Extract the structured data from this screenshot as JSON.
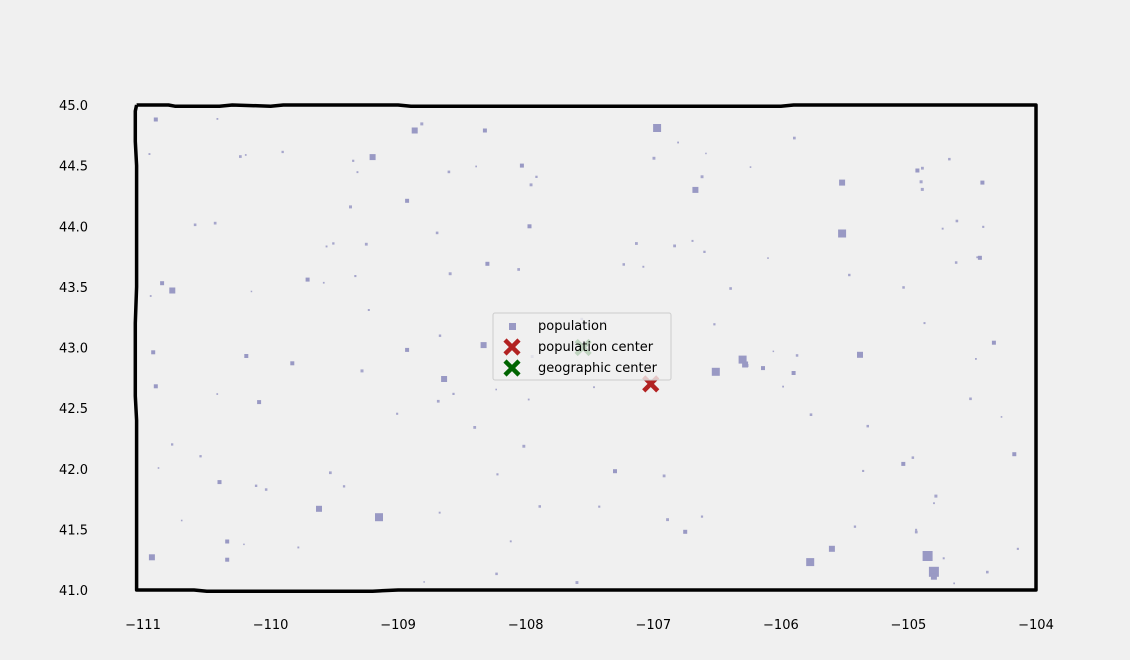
{
  "chart_data": {
    "type": "scatter",
    "xlim": [
      -111.05,
      -104.0
    ],
    "ylim": [
      40.98,
      45.05
    ],
    "x_ticks": [
      -111,
      -110,
      -109,
      -108,
      -107,
      -106,
      -105,
      -104
    ],
    "y_ticks": [
      41.0,
      41.5,
      42.0,
      42.5,
      43.0,
      43.5,
      44.0,
      44.5,
      45.0
    ],
    "x_tick_labels": [
      "−111",
      "−110",
      "−109",
      "−108",
      "−107",
      "−106",
      "−105",
      "−104"
    ],
    "y_tick_labels": [
      "41.0",
      "41.5",
      "42.0",
      "42.5",
      "43.0",
      "43.5",
      "44.0",
      "44.5",
      "45.0"
    ],
    "grid": false,
    "legend_position": "center",
    "boundary": {
      "color": "#000000",
      "lonlat": [
        [
          -111.05,
          45.0
        ],
        [
          -110.8,
          45.0
        ],
        [
          -110.75,
          44.99
        ],
        [
          -110.4,
          44.99
        ],
        [
          -110.3,
          45.0
        ],
        [
          -110.0,
          44.99
        ],
        [
          -109.9,
          45.0
        ],
        [
          -109.0,
          45.0
        ],
        [
          -108.9,
          44.99
        ],
        [
          -106.0,
          44.99
        ],
        [
          -105.9,
          45.0
        ],
        [
          -104.0,
          45.0
        ],
        [
          -104.0,
          44.0
        ],
        [
          -104.0,
          41.0
        ],
        [
          -106.0,
          41.0
        ],
        [
          -107.9,
          41.0
        ],
        [
          -108.2,
          41.0
        ],
        [
          -109.0,
          41.0
        ],
        [
          -109.2,
          40.99
        ],
        [
          -110.5,
          40.99
        ],
        [
          -110.6,
          41.0
        ],
        [
          -111.05,
          41.0
        ],
        [
          -111.05,
          42.0
        ],
        [
          -111.05,
          42.4
        ],
        [
          -111.06,
          42.6
        ],
        [
          -111.06,
          43.2
        ],
        [
          -111.05,
          43.5
        ],
        [
          -111.05,
          44.0
        ],
        [
          -111.05,
          44.5
        ],
        [
          -111.06,
          44.7
        ],
        [
          -111.06,
          44.95
        ],
        [
          -111.05,
          45.0
        ]
      ]
    },
    "series": [
      {
        "name": "population",
        "marker": "square",
        "color": "#9999c4",
        "points": [
          [
            -110.9,
            44.88,
            1
          ],
          [
            -108.87,
            44.79,
            2
          ],
          [
            -108.32,
            44.79,
            1
          ],
          [
            -106.97,
            44.81,
            3
          ],
          [
            -109.2,
            44.57,
            2
          ],
          [
            -106.67,
            44.3,
            2
          ],
          [
            -105.52,
            44.36,
            2
          ],
          [
            -105.52,
            43.94,
            3
          ],
          [
            -104.44,
            43.74,
            1
          ],
          [
            -107.97,
            44.0,
            1
          ],
          [
            -110.77,
            43.47,
            2
          ],
          [
            -110.85,
            43.53,
            1
          ],
          [
            -108.33,
            43.02,
            2
          ],
          [
            -108.64,
            42.74,
            2
          ],
          [
            -109.83,
            42.87,
            1
          ],
          [
            -110.19,
            42.93,
            1
          ],
          [
            -110.92,
            42.96,
            1
          ],
          [
            -110.9,
            42.68,
            1
          ],
          [
            -106.28,
            42.86,
            2
          ],
          [
            -106.3,
            42.9,
            3
          ],
          [
            -106.51,
            42.8,
            3
          ],
          [
            -105.38,
            42.94,
            2
          ],
          [
            -105.9,
            42.79,
            1
          ],
          [
            -106.14,
            42.83,
            1
          ],
          [
            -107.3,
            41.98,
            1
          ],
          [
            -105.04,
            42.04,
            1
          ],
          [
            -104.17,
            42.12,
            1
          ],
          [
            -109.62,
            41.67,
            2
          ],
          [
            -109.15,
            41.6,
            3
          ],
          [
            -110.34,
            41.4,
            1
          ],
          [
            -110.93,
            41.27,
            2
          ],
          [
            -105.77,
            41.23,
            3
          ],
          [
            -105.6,
            41.34,
            2
          ],
          [
            -104.85,
            41.28,
            4
          ],
          [
            -104.8,
            41.15,
            4
          ],
          [
            -104.8,
            41.11,
            2
          ],
          [
            -106.75,
            41.48,
            1
          ],
          [
            -104.33,
            43.04,
            1
          ],
          [
            -104.42,
            44.36,
            1
          ],
          [
            -104.93,
            44.46,
            1
          ],
          [
            -108.03,
            44.5,
            1
          ],
          [
            -108.93,
            44.21,
            1
          ],
          [
            -108.3,
            43.69,
            1
          ],
          [
            -108.93,
            42.98,
            1
          ],
          [
            -110.09,
            42.55,
            1
          ],
          [
            -109.71,
            43.56,
            1
          ],
          [
            -110.34,
            41.25,
            1
          ],
          [
            -110.4,
            41.89,
            1
          ]
        ]
      },
      {
        "name": "population center",
        "marker": "x",
        "color": "#b22222",
        "points": [
          [
            -107.02,
            42.7
          ]
        ]
      },
      {
        "name": "geographic center",
        "marker": "x",
        "color": "#006400",
        "points": [
          [
            -107.55,
            43.0
          ]
        ]
      }
    ]
  }
}
